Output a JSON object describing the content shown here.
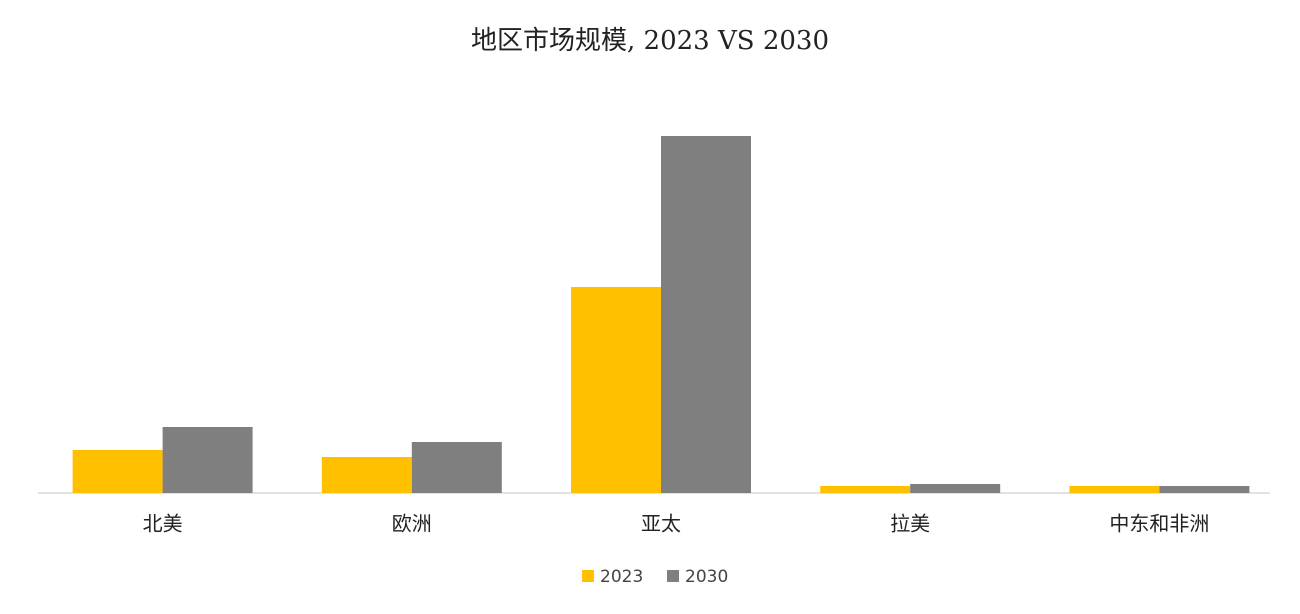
{
  "chart_data": {
    "type": "bar",
    "title": "地区市场规模, 2023 VS 2030",
    "categories": [
      "北美",
      "欧洲",
      "亚太",
      "拉美",
      "中东和非洲"
    ],
    "series": [
      {
        "name": "2023",
        "color": "#FFC000",
        "values": [
          43,
          36,
          206,
          7,
          7
        ]
      },
      {
        "name": "2030",
        "color": "#7F7F7F",
        "values": [
          66,
          51,
          357,
          9,
          7
        ]
      }
    ],
    "ylim": [
      0,
      357
    ],
    "legend": "bottom"
  }
}
